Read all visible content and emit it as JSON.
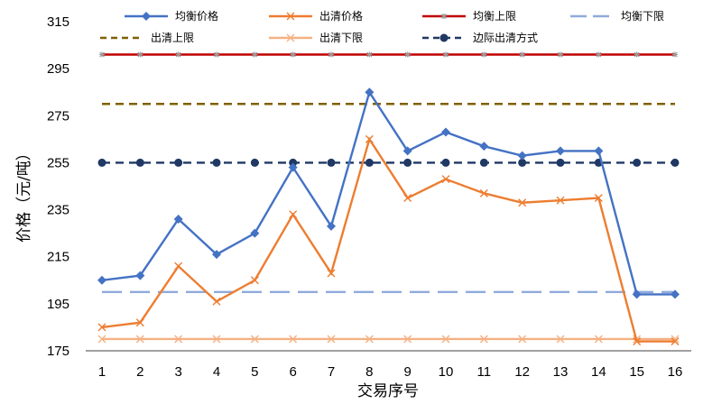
{
  "chart_data": {
    "type": "line",
    "xlabel": "交易序号",
    "ylabel": "价格（元/吨）",
    "x": [
      1,
      2,
      3,
      4,
      5,
      6,
      7,
      8,
      9,
      10,
      11,
      12,
      13,
      14,
      15,
      16
    ],
    "ylim": [
      175,
      315
    ],
    "yticks": [
      175,
      195,
      215,
      235,
      255,
      275,
      295,
      315
    ],
    "grid": false,
    "legend_position": "top",
    "series": [
      {
        "name": "均衡价格",
        "color": "#4472C4",
        "style": "solid",
        "marker": "diamond",
        "values": [
          205,
          207,
          231,
          216,
          225,
          253,
          228,
          285,
          260,
          268,
          262,
          258,
          260,
          260,
          199,
          199
        ]
      },
      {
        "name": "出清价格",
        "color": "#ED7D31",
        "style": "solid",
        "marker": "x",
        "values": [
          185,
          187,
          211,
          196,
          205,
          233,
          208,
          265,
          240,
          248,
          242,
          238,
          239,
          240,
          179,
          179
        ]
      },
      {
        "name": "均衡上限",
        "color": "#C00000",
        "style": "solid",
        "marker": "star",
        "values": [
          301,
          301,
          301,
          301,
          301,
          301,
          301,
          301,
          301,
          301,
          301,
          301,
          301,
          301,
          301,
          301
        ]
      },
      {
        "name": "均衡下限",
        "color": "#8FAADC",
        "style": "longdash",
        "marker": "none",
        "values": [
          200,
          200,
          200,
          200,
          200,
          200,
          200,
          200,
          200,
          200,
          200,
          200,
          200,
          200,
          200,
          200
        ]
      },
      {
        "name": "出清上限",
        "color": "#7F6000",
        "style": "dash",
        "marker": "none",
        "values": [
          280,
          280,
          280,
          280,
          280,
          280,
          280,
          280,
          280,
          280,
          280,
          280,
          280,
          280,
          280,
          280
        ]
      },
      {
        "name": "出清下限",
        "color": "#F4B183",
        "style": "solid",
        "marker": "x",
        "values": [
          180,
          180,
          180,
          180,
          180,
          180,
          180,
          180,
          180,
          180,
          180,
          180,
          180,
          180,
          180,
          180
        ]
      },
      {
        "name": "边际出清方式",
        "color": "#1F3864",
        "style": "dash",
        "marker": "circle",
        "values": [
          255,
          255,
          255,
          255,
          255,
          255,
          255,
          255,
          255,
          255,
          255,
          255,
          255,
          255,
          255,
          255
        ]
      }
    ]
  }
}
